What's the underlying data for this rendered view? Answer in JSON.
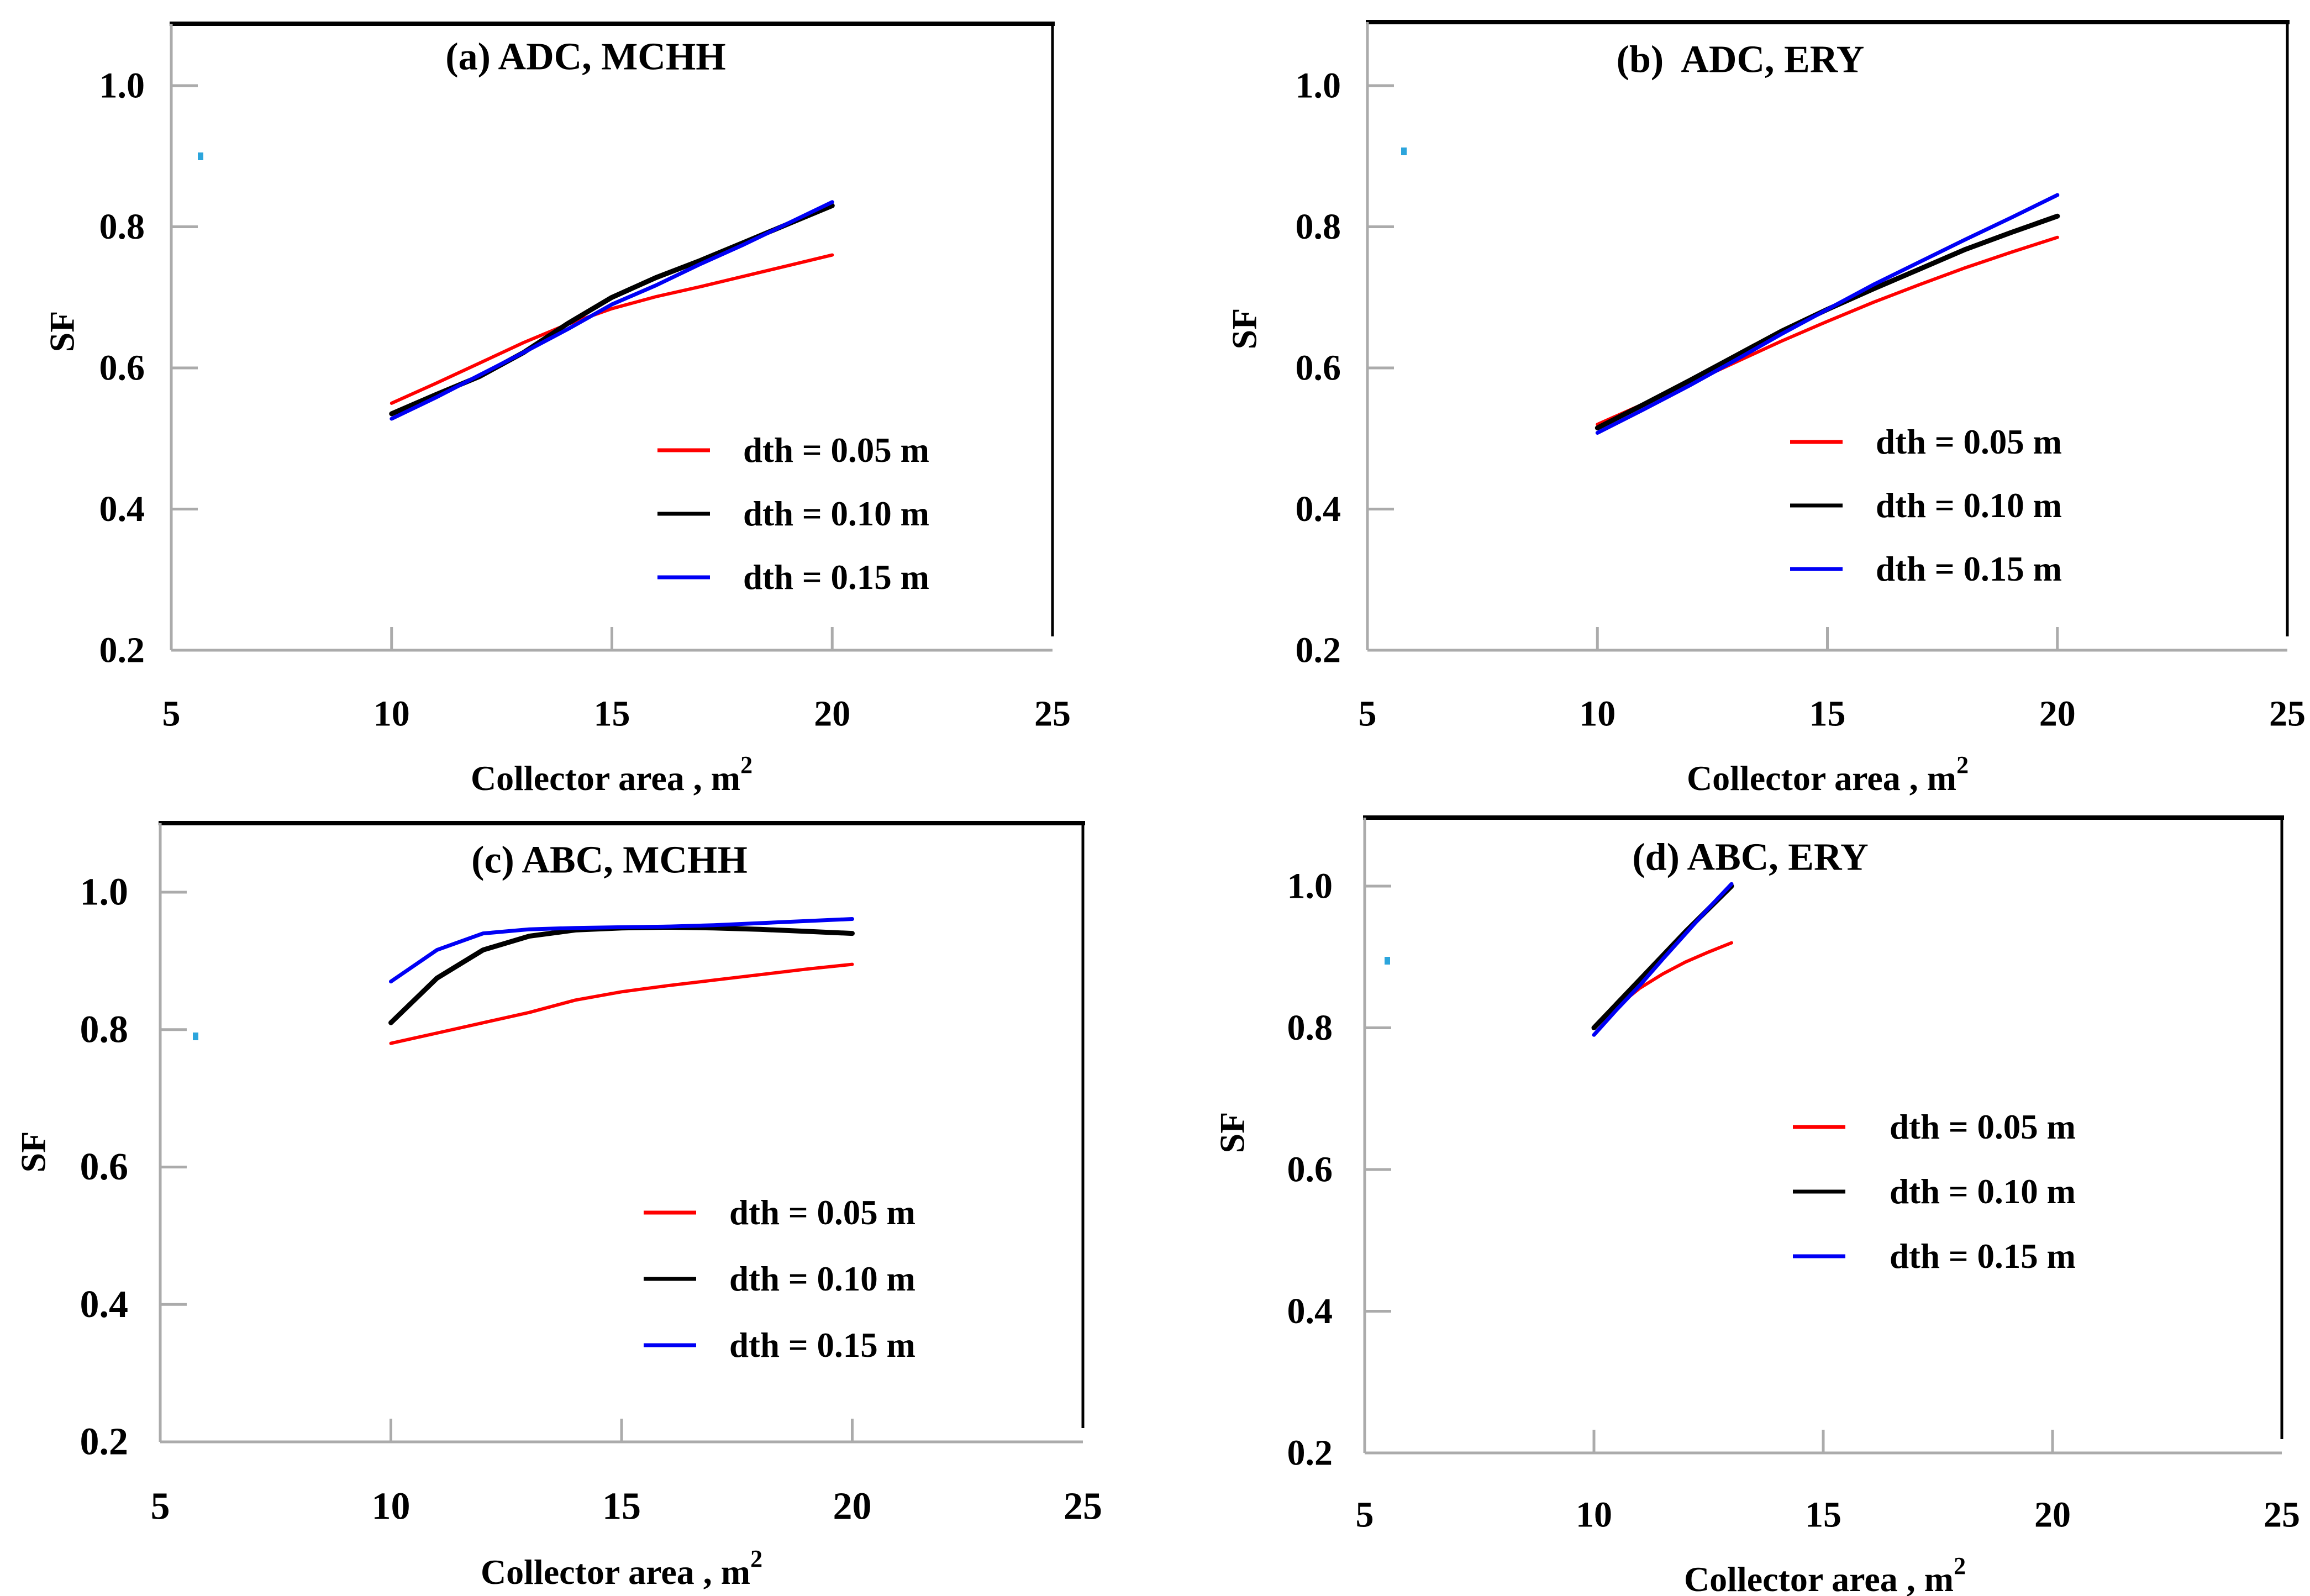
{
  "figure": {
    "background": "#ffffff",
    "ylabel": "SF",
    "xlabel": "Collector area , m",
    "xlabel_superscript": "2"
  },
  "colors": {
    "series_red": "#ff0000",
    "series_black": "#000000",
    "series_blue": "#0000f5",
    "axis_gray": "#ababab",
    "box_black": "#000000",
    "text_black": "#000000",
    "artifact_cyan": "#2ca5dc"
  },
  "legend_labels": [
    "dth = 0.05 m",
    "dth = 0.10 m",
    "dth = 0.15 m"
  ],
  "chart_data": [
    {
      "id": "a",
      "type": "line",
      "title": "(a) ADC, MCHH",
      "xlabel": "Collector area , m",
      "xlabel_sup": "2",
      "ylabel": "SF",
      "xlim": [
        5,
        25
      ],
      "ylim": [
        0.2,
        1.09
      ],
      "xticks": [
        "5",
        "10",
        "15",
        "20",
        "25"
      ],
      "xtick_values": [
        5,
        10,
        15,
        20,
        25
      ],
      "yticks": [
        "1.0",
        "0.8",
        "0.6",
        "0.4",
        "0.2"
      ],
      "ytick_values": [
        1.0,
        0.8,
        0.6,
        0.4,
        0.2
      ],
      "grid": false,
      "legend_position": "inside-right-middle",
      "x": [
        10,
        11,
        12,
        13,
        14,
        15,
        16,
        17,
        18,
        19,
        20
      ],
      "series": [
        {
          "name": "dth = 0.05 m",
          "color": "series_red",
          "values": [
            0.55,
            0.578,
            0.607,
            0.636,
            0.662,
            0.684,
            0.701,
            0.715,
            0.73,
            0.745,
            0.76
          ]
        },
        {
          "name": "dth = 0.10 m",
          "color": "series_black",
          "values": [
            0.535,
            0.562,
            0.588,
            0.622,
            0.663,
            0.7,
            0.728,
            0.752,
            0.778,
            0.804,
            0.83
          ]
        },
        {
          "name": "dth = 0.15 m",
          "color": "series_blue",
          "values": [
            0.528,
            0.558,
            0.59,
            0.622,
            0.655,
            0.69,
            0.717,
            0.747,
            0.775,
            0.805,
            0.835
          ]
        }
      ]
    },
    {
      "id": "b",
      "type": "line",
      "title": "(b)  ADC, ERY",
      "xlabel": "Collector area , m",
      "xlabel_sup": "2",
      "ylabel": "SF",
      "xlim": [
        5,
        25
      ],
      "ylim": [
        0.2,
        1.09
      ],
      "xticks": [
        "5",
        "10",
        "15",
        "20",
        "25"
      ],
      "xtick_values": [
        5,
        10,
        15,
        20,
        25
      ],
      "yticks": [
        "1.0",
        "0.8",
        "0.6",
        "0.4",
        "0.2"
      ],
      "ytick_values": [
        1.0,
        0.8,
        0.6,
        0.4,
        0.2
      ],
      "grid": false,
      "legend_position": "inside-right-middle",
      "x": [
        10,
        11,
        12,
        13,
        14,
        15,
        16,
        17,
        18,
        19,
        20
      ],
      "series": [
        {
          "name": "dth = 0.05 m",
          "color": "series_red",
          "values": [
            0.52,
            0.549,
            0.578,
            0.608,
            0.638,
            0.666,
            0.693,
            0.718,
            0.742,
            0.764,
            0.785
          ]
        },
        {
          "name": "dth = 0.10 m",
          "color": "series_black",
          "values": [
            0.515,
            0.548,
            0.582,
            0.617,
            0.652,
            0.683,
            0.712,
            0.74,
            0.768,
            0.792,
            0.815
          ]
        },
        {
          "name": "dth = 0.15 m",
          "color": "series_blue",
          "values": [
            0.508,
            0.541,
            0.575,
            0.611,
            0.648,
            0.683,
            0.718,
            0.75,
            0.782,
            0.813,
            0.845
          ]
        }
      ]
    },
    {
      "id": "c",
      "type": "line",
      "title": "(c) ABC, MCHH",
      "xlabel": "Collector area , m",
      "xlabel_sup": "2",
      "ylabel": "SF",
      "xlim": [
        5,
        25
      ],
      "ylim": [
        0.2,
        1.09
      ],
      "xticks": [
        "5",
        "10",
        "15",
        "20",
        "25"
      ],
      "xtick_values": [
        5,
        10,
        15,
        20,
        25
      ],
      "yticks": [
        "1.0",
        "0.8",
        "0.6",
        "0.4",
        "0.2"
      ],
      "ytick_values": [
        1.0,
        0.8,
        0.6,
        0.4,
        0.2
      ],
      "grid": false,
      "legend_position": "inside-right-middle",
      "x": [
        10,
        11,
        12,
        13,
        14,
        15,
        16,
        17,
        18,
        19,
        20
      ],
      "series": [
        {
          "name": "dth = 0.05 m",
          "color": "series_red",
          "values": [
            0.78,
            0.795,
            0.81,
            0.825,
            0.843,
            0.855,
            0.864,
            0.872,
            0.88,
            0.888,
            0.895
          ]
        },
        {
          "name": "dth = 0.10 m",
          "color": "series_black",
          "values": [
            0.81,
            0.875,
            0.916,
            0.936,
            0.945,
            0.948,
            0.949,
            0.948,
            0.946,
            0.943,
            0.94
          ]
        },
        {
          "name": "dth = 0.15 m",
          "color": "series_blue",
          "values": [
            0.87,
            0.916,
            0.94,
            0.946,
            0.948,
            0.949,
            0.95,
            0.952,
            0.955,
            0.958,
            0.961
          ]
        }
      ]
    },
    {
      "id": "d",
      "type": "line",
      "title": "(d) ABC, ERY",
      "xlabel": "Collector area , m",
      "xlabel_sup": "2",
      "ylabel": "SF",
      "xlim": [
        5,
        25
      ],
      "ylim": [
        0.2,
        1.09
      ],
      "xticks": [
        "5",
        "10",
        "15",
        "20",
        "25"
      ],
      "xtick_values": [
        5,
        10,
        15,
        20,
        25
      ],
      "yticks": [
        "1.0",
        "0.8",
        "0.6",
        "0.4",
        "0.2"
      ],
      "ytick_values": [
        1.0,
        0.8,
        0.6,
        0.4,
        0.2
      ],
      "grid": false,
      "legend_position": "inside-right-upper",
      "x": [
        10,
        10.5,
        11,
        11.5,
        12,
        12.5,
        13
      ],
      "series": [
        {
          "name": "dth = 0.05 m",
          "color": "series_red",
          "values": [
            0.8,
            0.83,
            0.856,
            0.876,
            0.893,
            0.907,
            0.92
          ]
        },
        {
          "name": "dth = 0.10 m",
          "color": "series_black",
          "values": [
            0.8,
            0.834,
            0.868,
            0.902,
            0.936,
            0.968,
            1.0
          ]
        },
        {
          "name": "dth = 0.15 m",
          "color": "series_blue",
          "values": [
            0.79,
            0.826,
            0.86,
            0.897,
            0.933,
            0.969,
            1.003
          ]
        }
      ]
    }
  ]
}
